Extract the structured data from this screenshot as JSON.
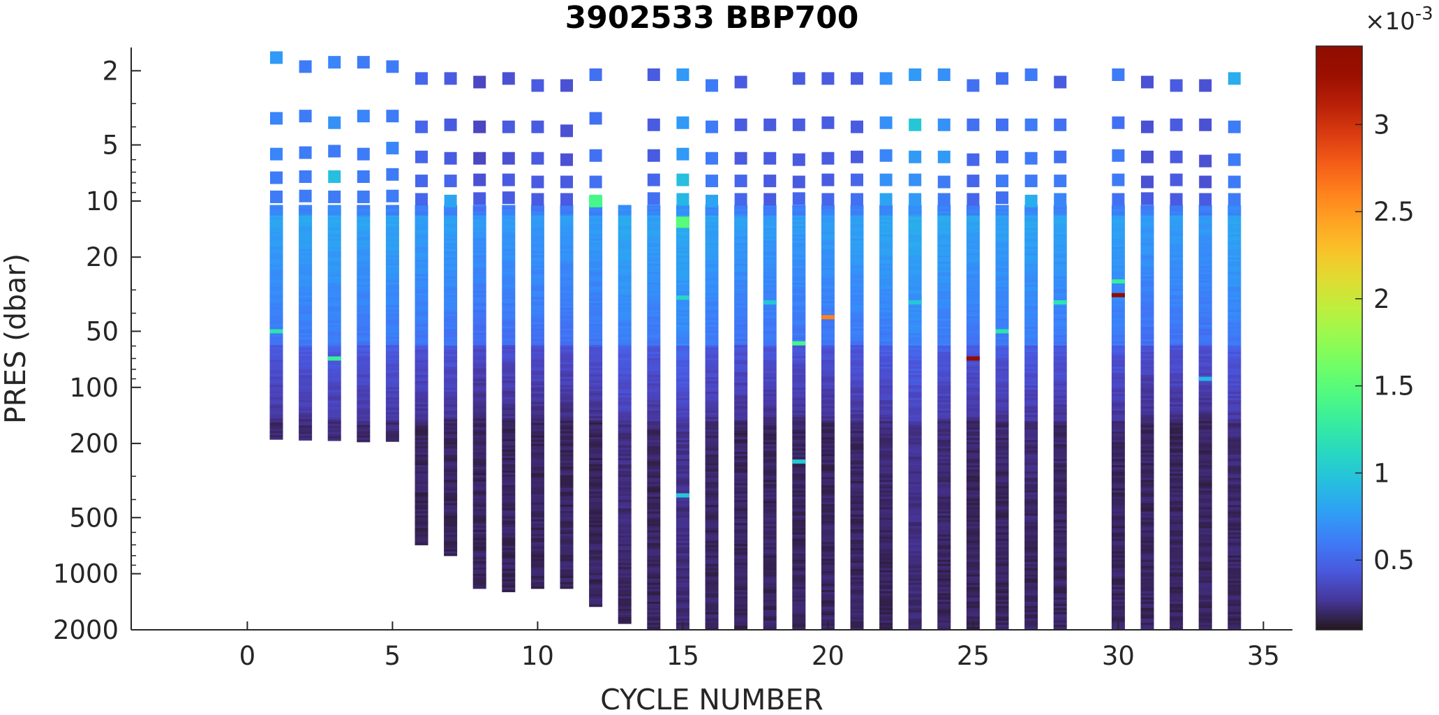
{
  "chart_data": {
    "type": "heatmap",
    "title": "3902533 BBP700",
    "xlabel": "CYCLE NUMBER",
    "ylabel": "PRES (dbar)",
    "xlim": [
      -4,
      36
    ],
    "xticks": [
      0,
      5,
      10,
      15,
      20,
      25,
      30,
      35
    ],
    "ylim": [
      2000,
      1.5
    ],
    "yscale": "log",
    "yreverse": true,
    "yticks": [
      2,
      5,
      10,
      20,
      50,
      100,
      200,
      500,
      1000,
      2000
    ],
    "colorbar": {
      "colormap": "turbo",
      "multiplier": "×10^-3",
      "exponent": "-3",
      "multiplier_prefix": "×10",
      "range": [
        0.1,
        3.45
      ],
      "ticks": [
        0.5,
        1,
        1.5,
        2,
        2.5,
        3
      ]
    },
    "profiles": [
      {
        "cycle": 1,
        "max_pres": 190,
        "base": 0.46
      },
      {
        "cycle": 2,
        "max_pres": 192,
        "base": 0.47
      },
      {
        "cycle": 3,
        "max_pres": 193,
        "base": 0.48
      },
      {
        "cycle": 4,
        "max_pres": 196,
        "base": 0.46
      },
      {
        "cycle": 5,
        "max_pres": 195,
        "base": 0.47
      },
      {
        "cycle": 6,
        "max_pres": 700,
        "base": 0.44
      },
      {
        "cycle": 7,
        "max_pres": 800,
        "base": 0.45
      },
      {
        "cycle": 8,
        "max_pres": 1200,
        "base": 0.4
      },
      {
        "cycle": 9,
        "max_pres": 1250,
        "base": 0.42
      },
      {
        "cycle": 10,
        "max_pres": 1200,
        "base": 0.42
      },
      {
        "cycle": 11,
        "max_pres": 1200,
        "base": 0.42
      },
      {
        "cycle": 12,
        "max_pres": 1500,
        "base": 0.44
      },
      {
        "cycle": 13,
        "max_pres": 1850,
        "base": 0.5
      },
      {
        "cycle": 14,
        "max_pres": 1980,
        "base": 0.46
      },
      {
        "cycle": 15,
        "max_pres": 1980,
        "base": 0.52
      },
      {
        "cycle": 16,
        "max_pres": 1980,
        "base": 0.46
      },
      {
        "cycle": 17,
        "max_pres": 2000,
        "base": 0.44
      },
      {
        "cycle": 18,
        "max_pres": 1980,
        "base": 0.44
      },
      {
        "cycle": 19,
        "max_pres": 1980,
        "base": 0.44
      },
      {
        "cycle": 20,
        "max_pres": 2000,
        "base": 0.44
      },
      {
        "cycle": 21,
        "max_pres": 2000,
        "base": 0.46
      },
      {
        "cycle": 22,
        "max_pres": 1980,
        "base": 0.48
      },
      {
        "cycle": 23,
        "max_pres": 1980,
        "base": 0.52
      },
      {
        "cycle": 24,
        "max_pres": 1980,
        "base": 0.48
      },
      {
        "cycle": 25,
        "max_pres": 1980,
        "base": 0.46
      },
      {
        "cycle": 26,
        "max_pres": 1980,
        "base": 0.46
      },
      {
        "cycle": 27,
        "max_pres": 1980,
        "base": 0.48
      },
      {
        "cycle": 28,
        "max_pres": 1980,
        "base": 0.46
      },
      {
        "cycle": 30,
        "max_pres": 1980,
        "base": 0.46
      },
      {
        "cycle": 31,
        "max_pres": 1980,
        "base": 0.42
      },
      {
        "cycle": 32,
        "max_pres": 1980,
        "base": 0.44
      },
      {
        "cycle": 33,
        "max_pres": 1980,
        "base": 0.42
      },
      {
        "cycle": 34,
        "max_pres": 1980,
        "base": 0.48
      }
    ],
    "shallow_points": [
      {
        "cycle": 1,
        "pres": 1.7,
        "value": 0.75
      },
      {
        "cycle": 1,
        "pres": 3.6,
        "value": 0.65
      },
      {
        "cycle": 1,
        "pres": 5.6,
        "value": 0.65
      },
      {
        "cycle": 1,
        "pres": 7.5,
        "value": 0.6
      },
      {
        "cycle": 1,
        "pres": 9.5,
        "value": 0.6
      },
      {
        "cycle": 2,
        "pres": 1.9,
        "value": 0.6
      },
      {
        "cycle": 2,
        "pres": 3.5,
        "value": 0.6
      },
      {
        "cycle": 2,
        "pres": 5.5,
        "value": 0.6
      },
      {
        "cycle": 2,
        "pres": 7.4,
        "value": 0.6
      },
      {
        "cycle": 2,
        "pres": 9.4,
        "value": 0.6
      },
      {
        "cycle": 3,
        "pres": 1.8,
        "value": 0.65
      },
      {
        "cycle": 3,
        "pres": 3.8,
        "value": 0.7
      },
      {
        "cycle": 3,
        "pres": 5.4,
        "value": 0.6
      },
      {
        "cycle": 3,
        "pres": 7.4,
        "value": 0.95
      },
      {
        "cycle": 3,
        "pres": 9.5,
        "value": 0.6
      },
      {
        "cycle": 4,
        "pres": 1.8,
        "value": 0.6
      },
      {
        "cycle": 4,
        "pres": 3.5,
        "value": 0.65
      },
      {
        "cycle": 4,
        "pres": 5.6,
        "value": 0.6
      },
      {
        "cycle": 4,
        "pres": 7.4,
        "value": 0.6
      },
      {
        "cycle": 4,
        "pres": 9.5,
        "value": 0.6
      },
      {
        "cycle": 5,
        "pres": 1.9,
        "value": 0.6
      },
      {
        "cycle": 5,
        "pres": 3.5,
        "value": 0.6
      },
      {
        "cycle": 5,
        "pres": 5.2,
        "value": 0.65
      },
      {
        "cycle": 5,
        "pres": 7.2,
        "value": 0.6
      },
      {
        "cycle": 5,
        "pres": 9.4,
        "value": 0.6
      },
      {
        "cycle": 6,
        "pres": 2.2,
        "value": 0.5
      },
      {
        "cycle": 6,
        "pres": 4.0,
        "value": 0.5
      },
      {
        "cycle": 6,
        "pres": 5.8,
        "value": 0.5
      },
      {
        "cycle": 6,
        "pres": 7.8,
        "value": 0.5
      },
      {
        "cycle": 6,
        "pres": 9.8,
        "value": 0.5
      },
      {
        "cycle": 7,
        "pres": 2.2,
        "value": 0.45
      },
      {
        "cycle": 7,
        "pres": 3.9,
        "value": 0.45
      },
      {
        "cycle": 7,
        "pres": 5.9,
        "value": 0.45
      },
      {
        "cycle": 7,
        "pres": 7.8,
        "value": 0.5
      },
      {
        "cycle": 7,
        "pres": 10.0,
        "value": 0.8
      },
      {
        "cycle": 8,
        "pres": 2.3,
        "value": 0.35
      },
      {
        "cycle": 8,
        "pres": 4.0,
        "value": 0.35
      },
      {
        "cycle": 8,
        "pres": 5.9,
        "value": 0.35
      },
      {
        "cycle": 8,
        "pres": 7.7,
        "value": 0.4
      },
      {
        "cycle": 8,
        "pres": 9.7,
        "value": 0.45
      },
      {
        "cycle": 9,
        "pres": 2.2,
        "value": 0.4
      },
      {
        "cycle": 9,
        "pres": 4.0,
        "value": 0.45
      },
      {
        "cycle": 9,
        "pres": 5.9,
        "value": 0.4
      },
      {
        "cycle": 9,
        "pres": 7.7,
        "value": 0.45
      },
      {
        "cycle": 9,
        "pres": 9.6,
        "value": 0.45
      },
      {
        "cycle": 10,
        "pres": 2.4,
        "value": 0.45
      },
      {
        "cycle": 10,
        "pres": 4.0,
        "value": 0.45
      },
      {
        "cycle": 10,
        "pres": 5.9,
        "value": 0.45
      },
      {
        "cycle": 10,
        "pres": 7.9,
        "value": 0.45
      },
      {
        "cycle": 10,
        "pres": 9.8,
        "value": 0.45
      },
      {
        "cycle": 11,
        "pres": 2.4,
        "value": 0.4
      },
      {
        "cycle": 11,
        "pres": 4.2,
        "value": 0.4
      },
      {
        "cycle": 11,
        "pres": 6.0,
        "value": 0.4
      },
      {
        "cycle": 11,
        "pres": 7.9,
        "value": 0.45
      },
      {
        "cycle": 11,
        "pres": 9.8,
        "value": 0.45
      },
      {
        "cycle": 12,
        "pres": 2.1,
        "value": 0.55
      },
      {
        "cycle": 12,
        "pres": 3.6,
        "value": 0.55
      },
      {
        "cycle": 12,
        "pres": 5.7,
        "value": 0.55
      },
      {
        "cycle": 12,
        "pres": 7.9,
        "value": 0.55
      },
      {
        "cycle": 12,
        "pres": 10.0,
        "value": 1.4
      },
      {
        "cycle": 14,
        "pres": 2.1,
        "value": 0.45
      },
      {
        "cycle": 14,
        "pres": 3.9,
        "value": 0.45
      },
      {
        "cycle": 14,
        "pres": 5.7,
        "value": 0.45
      },
      {
        "cycle": 14,
        "pres": 7.7,
        "value": 0.5
      },
      {
        "cycle": 14,
        "pres": 9.7,
        "value": 0.55
      },
      {
        "cycle": 15,
        "pres": 2.1,
        "value": 0.75
      },
      {
        "cycle": 15,
        "pres": 3.8,
        "value": 0.75
      },
      {
        "cycle": 15,
        "pres": 5.6,
        "value": 0.75
      },
      {
        "cycle": 15,
        "pres": 7.7,
        "value": 0.95
      },
      {
        "cycle": 15,
        "pres": 9.8,
        "value": 0.9
      },
      {
        "cycle": 16,
        "pres": 2.4,
        "value": 0.6
      },
      {
        "cycle": 16,
        "pres": 4.0,
        "value": 0.6
      },
      {
        "cycle": 16,
        "pres": 5.9,
        "value": 0.6
      },
      {
        "cycle": 16,
        "pres": 7.8,
        "value": 0.6
      },
      {
        "cycle": 16,
        "pres": 10.0,
        "value": 0.8
      },
      {
        "cycle": 17,
        "pres": 2.3,
        "value": 0.45
      },
      {
        "cycle": 17,
        "pres": 3.9,
        "value": 0.45
      },
      {
        "cycle": 17,
        "pres": 5.9,
        "value": 0.45
      },
      {
        "cycle": 17,
        "pres": 7.8,
        "value": 0.5
      },
      {
        "cycle": 17,
        "pres": 9.8,
        "value": 0.5
      },
      {
        "cycle": 18,
        "pres": 3.9,
        "value": 0.45
      },
      {
        "cycle": 18,
        "pres": 5.9,
        "value": 0.45
      },
      {
        "cycle": 18,
        "pres": 7.8,
        "value": 0.45
      },
      {
        "cycle": 18,
        "pres": 9.8,
        "value": 0.45
      },
      {
        "cycle": 19,
        "pres": 2.2,
        "value": 0.45
      },
      {
        "cycle": 19,
        "pres": 3.9,
        "value": 0.45
      },
      {
        "cycle": 19,
        "pres": 6.0,
        "value": 0.45
      },
      {
        "cycle": 19,
        "pres": 7.9,
        "value": 0.45
      },
      {
        "cycle": 19,
        "pres": 9.7,
        "value": 0.5
      },
      {
        "cycle": 20,
        "pres": 2.2,
        "value": 0.45
      },
      {
        "cycle": 20,
        "pres": 3.8,
        "value": 0.45
      },
      {
        "cycle": 20,
        "pres": 5.9,
        "value": 0.45
      },
      {
        "cycle": 20,
        "pres": 7.7,
        "value": 0.45
      },
      {
        "cycle": 20,
        "pres": 9.8,
        "value": 0.5
      },
      {
        "cycle": 21,
        "pres": 2.2,
        "value": 0.45
      },
      {
        "cycle": 21,
        "pres": 4.0,
        "value": 0.45
      },
      {
        "cycle": 21,
        "pres": 5.8,
        "value": 0.45
      },
      {
        "cycle": 21,
        "pres": 7.7,
        "value": 0.5
      },
      {
        "cycle": 21,
        "pres": 9.8,
        "value": 0.55
      },
      {
        "cycle": 22,
        "pres": 2.2,
        "value": 0.7
      },
      {
        "cycle": 22,
        "pres": 3.8,
        "value": 0.7
      },
      {
        "cycle": 22,
        "pres": 5.7,
        "value": 0.65
      },
      {
        "cycle": 22,
        "pres": 7.7,
        "value": 0.7
      },
      {
        "cycle": 22,
        "pres": 9.8,
        "value": 0.8
      },
      {
        "cycle": 23,
        "pres": 2.1,
        "value": 0.75
      },
      {
        "cycle": 23,
        "pres": 3.9,
        "value": 1.0
      },
      {
        "cycle": 23,
        "pres": 5.8,
        "value": 0.75
      },
      {
        "cycle": 23,
        "pres": 7.7,
        "value": 0.7
      },
      {
        "cycle": 23,
        "pres": 9.8,
        "value": 0.75
      },
      {
        "cycle": 24,
        "pres": 2.1,
        "value": 0.7
      },
      {
        "cycle": 24,
        "pres": 3.9,
        "value": 0.7
      },
      {
        "cycle": 24,
        "pres": 5.8,
        "value": 0.75
      },
      {
        "cycle": 24,
        "pres": 7.9,
        "value": 0.6
      },
      {
        "cycle": 24,
        "pres": 9.8,
        "value": 0.6
      },
      {
        "cycle": 25,
        "pres": 2.4,
        "value": 0.55
      },
      {
        "cycle": 25,
        "pres": 3.9,
        "value": 0.55
      },
      {
        "cycle": 25,
        "pres": 6.0,
        "value": 0.5
      },
      {
        "cycle": 25,
        "pres": 7.8,
        "value": 0.5
      },
      {
        "cycle": 25,
        "pres": 9.8,
        "value": 0.5
      },
      {
        "cycle": 26,
        "pres": 2.2,
        "value": 0.55
      },
      {
        "cycle": 26,
        "pres": 3.9,
        "value": 0.55
      },
      {
        "cycle": 26,
        "pres": 5.8,
        "value": 0.55
      },
      {
        "cycle": 26,
        "pres": 7.8,
        "value": 0.6
      },
      {
        "cycle": 26,
        "pres": 9.6,
        "value": 0.55
      },
      {
        "cycle": 27,
        "pres": 2.1,
        "value": 0.6
      },
      {
        "cycle": 27,
        "pres": 3.9,
        "value": 0.6
      },
      {
        "cycle": 27,
        "pres": 5.9,
        "value": 0.6
      },
      {
        "cycle": 27,
        "pres": 7.8,
        "value": 0.6
      },
      {
        "cycle": 27,
        "pres": 10.0,
        "value": 0.85
      },
      {
        "cycle": 28,
        "pres": 2.3,
        "value": 0.45
      },
      {
        "cycle": 28,
        "pres": 3.9,
        "value": 0.55
      },
      {
        "cycle": 28,
        "pres": 5.8,
        "value": 0.55
      },
      {
        "cycle": 28,
        "pres": 7.8,
        "value": 0.6
      },
      {
        "cycle": 28,
        "pres": 9.8,
        "value": 0.65
      },
      {
        "cycle": 30,
        "pres": 2.1,
        "value": 0.6
      },
      {
        "cycle": 30,
        "pres": 3.8,
        "value": 0.55
      },
      {
        "cycle": 30,
        "pres": 5.7,
        "value": 0.6
      },
      {
        "cycle": 30,
        "pres": 7.7,
        "value": 0.6
      },
      {
        "cycle": 30,
        "pres": 9.8,
        "value": 0.55
      },
      {
        "cycle": 31,
        "pres": 2.3,
        "value": 0.4
      },
      {
        "cycle": 31,
        "pres": 4.0,
        "value": 0.4
      },
      {
        "cycle": 31,
        "pres": 5.8,
        "value": 0.4
      },
      {
        "cycle": 31,
        "pres": 7.9,
        "value": 0.4
      },
      {
        "cycle": 31,
        "pres": 9.7,
        "value": 0.45
      },
      {
        "cycle": 32,
        "pres": 2.4,
        "value": 0.45
      },
      {
        "cycle": 32,
        "pres": 3.9,
        "value": 0.45
      },
      {
        "cycle": 32,
        "pres": 5.8,
        "value": 0.45
      },
      {
        "cycle": 32,
        "pres": 7.7,
        "value": 0.45
      },
      {
        "cycle": 32,
        "pres": 9.8,
        "value": 0.45
      },
      {
        "cycle": 33,
        "pres": 2.4,
        "value": 0.4
      },
      {
        "cycle": 33,
        "pres": 3.9,
        "value": 0.4
      },
      {
        "cycle": 33,
        "pres": 6.1,
        "value": 0.4
      },
      {
        "cycle": 33,
        "pres": 7.9,
        "value": 0.4
      },
      {
        "cycle": 33,
        "pres": 9.8,
        "value": 0.45
      },
      {
        "cycle": 34,
        "pres": 2.2,
        "value": 0.85
      },
      {
        "cycle": 34,
        "pres": 4.0,
        "value": 0.6
      },
      {
        "cycle": 34,
        "pres": 6.0,
        "value": 0.6
      },
      {
        "cycle": 34,
        "pres": 7.9,
        "value": 0.6
      },
      {
        "cycle": 34,
        "pres": 9.8,
        "value": 0.6
      }
    ],
    "anomalies": [
      {
        "cycle": 1,
        "pres": 50,
        "value": 1.2
      },
      {
        "cycle": 3,
        "pres": 70,
        "value": 1.3
      },
      {
        "cycle": 12,
        "pres": 10,
        "value": 1.4
      },
      {
        "cycle": 15,
        "pres": 13,
        "value": 1.5
      },
      {
        "cycle": 15,
        "pres": 33,
        "value": 1.1
      },
      {
        "cycle": 15,
        "pres": 380,
        "value": 1.0
      },
      {
        "cycle": 18,
        "pres": 35,
        "value": 1.0
      },
      {
        "cycle": 19,
        "pres": 58,
        "value": 1.4
      },
      {
        "cycle": 19,
        "pres": 250,
        "value": 1.0
      },
      {
        "cycle": 20,
        "pres": 42,
        "value": 2.6
      },
      {
        "cycle": 23,
        "pres": 35,
        "value": 1.0
      },
      {
        "cycle": 25,
        "pres": 70,
        "value": 3.4
      },
      {
        "cycle": 26,
        "pres": 50,
        "value": 1.2
      },
      {
        "cycle": 28,
        "pres": 35,
        "value": 1.2
      },
      {
        "cycle": 30,
        "pres": 27,
        "value": 1.3
      },
      {
        "cycle": 30,
        "pres": 32,
        "value": 3.4
      },
      {
        "cycle": 33,
        "pres": 90,
        "value": 0.9
      }
    ]
  }
}
